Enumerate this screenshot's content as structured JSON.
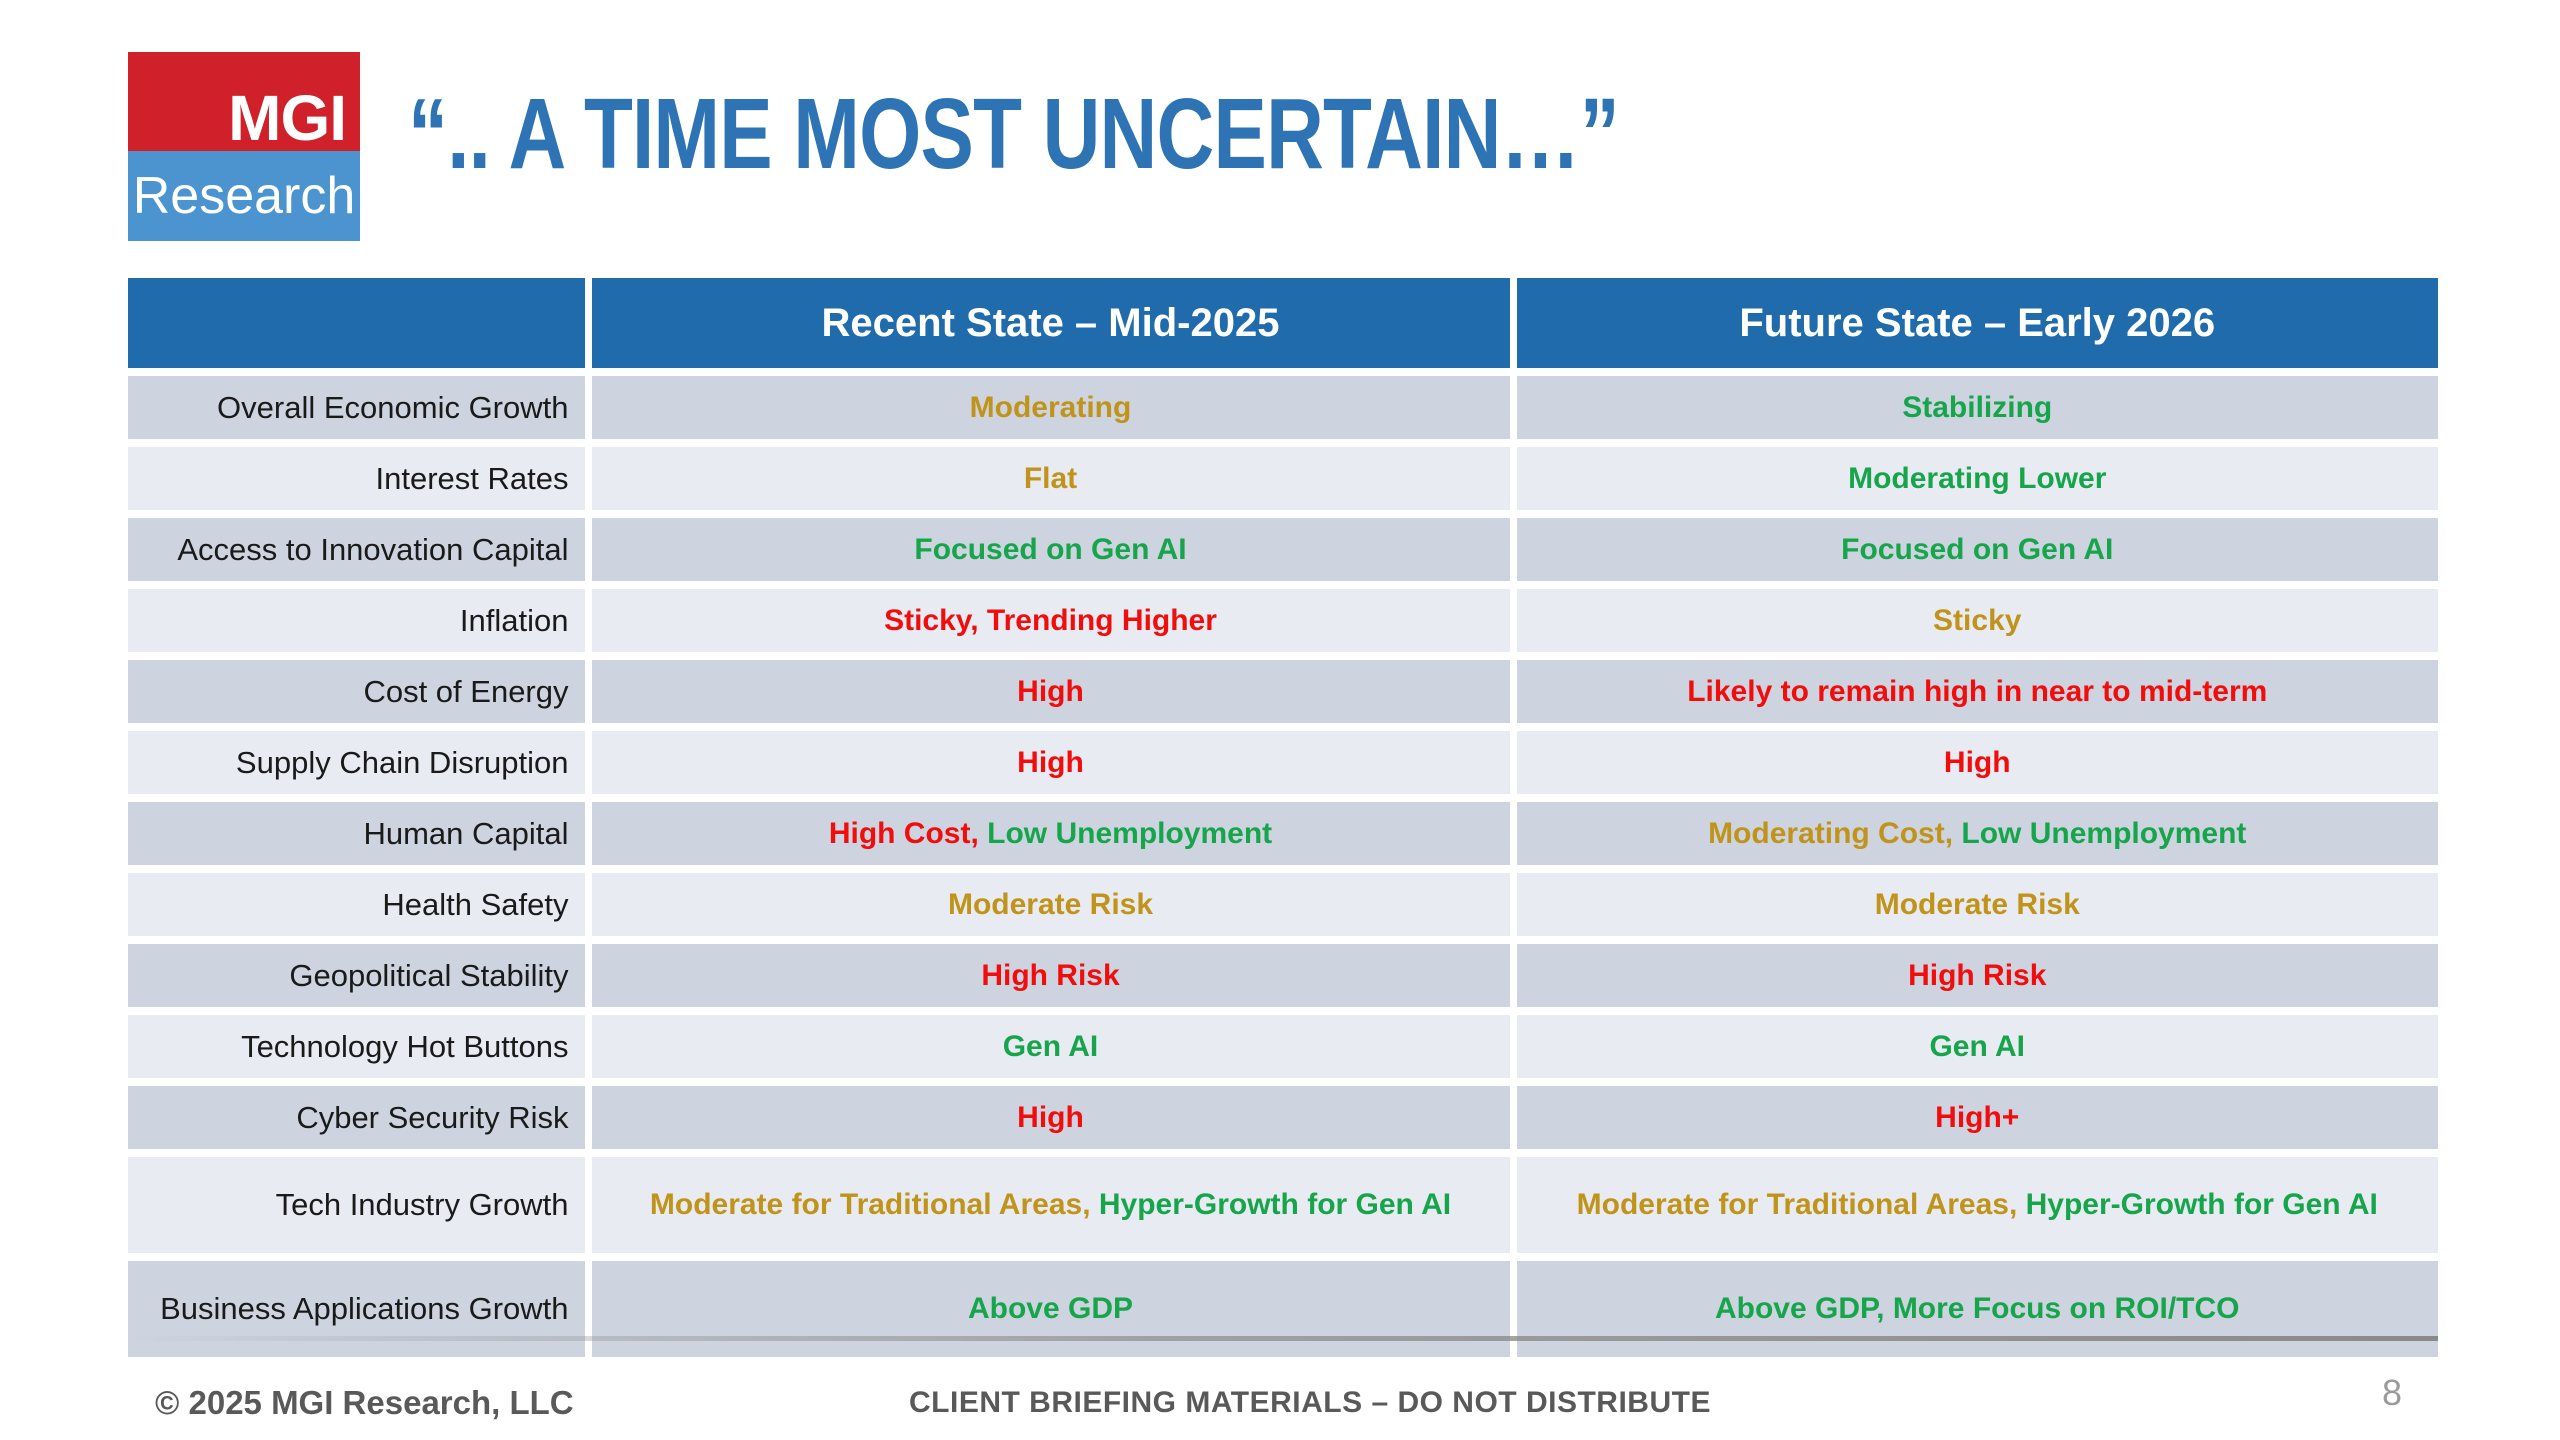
{
  "slide": {
    "title": "“.. A TIME MOST UNCERTAIN…”",
    "page_number": "8",
    "footer_left": "© 2025 MGI Research, LLC",
    "footer_center": "CLIENT BRIEFING MATERIALS – DO NOT DISTRIBUTE"
  },
  "logo": {
    "top_text": "MGI",
    "bottom_text": "Research",
    "red": "#D0202A",
    "blue": "#4B94D0"
  },
  "colors": {
    "header_bg": "#1F6BAC",
    "title_blue": "#2E74B5",
    "row_dark": "#CED3E0",
    "row_light": "#E9EBF2",
    "gold": "#C0931A",
    "green": "#17A54B",
    "red": "#F20D0D",
    "category_text": "#1A1A1A",
    "footer_gray": "#595959"
  },
  "table": {
    "columns": [
      "",
      "Recent State – Mid-2025",
      "Future State – Early 2026"
    ],
    "rows": [
      {
        "category": "Overall Economic Growth",
        "recent": [
          {
            "text": "Moderating",
            "color": "gold"
          }
        ],
        "future": [
          {
            "text": "Stabilizing",
            "color": "green"
          }
        ]
      },
      {
        "category": "Interest Rates",
        "recent": [
          {
            "text": "Flat",
            "color": "gold"
          }
        ],
        "future": [
          {
            "text": "Moderating Lower",
            "color": "green"
          }
        ]
      },
      {
        "category": "Access to Innovation Capital",
        "recent": [
          {
            "text": "Focused on Gen AI",
            "color": "green"
          }
        ],
        "future": [
          {
            "text": "Focused on Gen AI",
            "color": "green"
          }
        ]
      },
      {
        "category": "Inflation",
        "recent": [
          {
            "text": "Sticky, Trending Higher",
            "color": "red"
          }
        ],
        "future": [
          {
            "text": "Sticky",
            "color": "gold"
          }
        ]
      },
      {
        "category": "Cost of Energy",
        "recent": [
          {
            "text": "High",
            "color": "red"
          }
        ],
        "future": [
          {
            "text": "Likely to remain high in near to mid-term",
            "color": "red"
          }
        ]
      },
      {
        "category": "Supply Chain Disruption",
        "recent": [
          {
            "text": "High",
            "color": "red"
          }
        ],
        "future": [
          {
            "text": "High",
            "color": "red"
          }
        ]
      },
      {
        "category": "Human Capital",
        "recent": [
          {
            "text": "High Cost,",
            "color": "red"
          },
          {
            "text": " Low Unemployment",
            "color": "green"
          }
        ],
        "future": [
          {
            "text": "Moderating Cost,",
            "color": "gold"
          },
          {
            "text": " Low Unemployment",
            "color": "green"
          }
        ]
      },
      {
        "category": "Health Safety",
        "recent": [
          {
            "text": "Moderate Risk",
            "color": "gold"
          }
        ],
        "future": [
          {
            "text": "Moderate Risk",
            "color": "gold"
          }
        ]
      },
      {
        "category": "Geopolitical Stability",
        "recent": [
          {
            "text": "High Risk",
            "color": "red"
          }
        ],
        "future": [
          {
            "text": "High Risk",
            "color": "red"
          }
        ]
      },
      {
        "category": "Technology Hot Buttons",
        "recent": [
          {
            "text": "Gen AI",
            "color": "green"
          }
        ],
        "future": [
          {
            "text": "Gen AI",
            "color": "green"
          }
        ]
      },
      {
        "category": "Cyber Security Risk",
        "recent": [
          {
            "text": "High",
            "color": "red"
          }
        ],
        "future": [
          {
            "text": "High+",
            "color": "red"
          }
        ]
      },
      {
        "category": "Tech Industry Growth",
        "tall": true,
        "recent": [
          {
            "text": "Moderate for Traditional Areas,",
            "color": "gold"
          },
          {
            "text": " Hyper-Growth for Gen AI",
            "color": "green"
          }
        ],
        "future": [
          {
            "text": "Moderate for Traditional Areas,",
            "color": "gold"
          },
          {
            "text": " Hyper-Growth for Gen AI",
            "color": "green"
          }
        ]
      },
      {
        "category": "Business Applications Growth",
        "tall": true,
        "recent": [
          {
            "text": "Above GDP",
            "color": "green"
          }
        ],
        "future": [
          {
            "text": "Above GDP, More Focus on ROI/TCO",
            "color": "green"
          }
        ]
      }
    ]
  }
}
